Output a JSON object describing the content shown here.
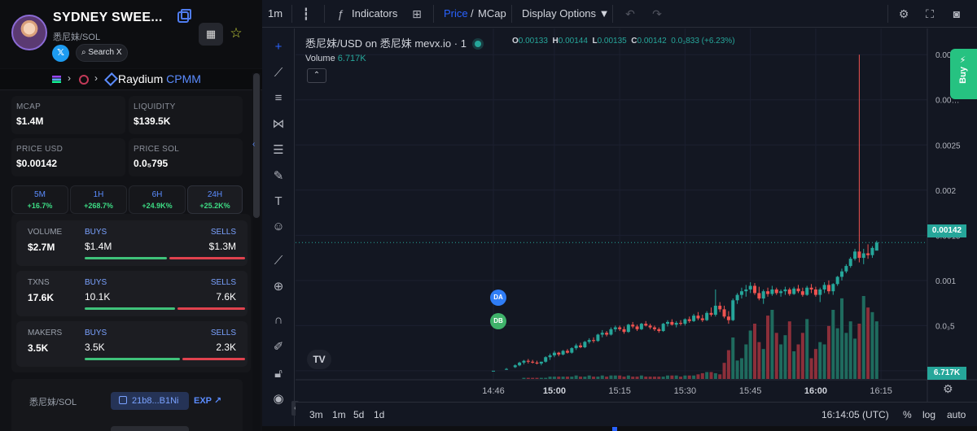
{
  "token": {
    "name": "SYDNEY SWEE...",
    "pair": "悉尼妹/SOL",
    "x_label": "𝕏",
    "search_x": "Search X"
  },
  "dex": {
    "name": "Raydium",
    "variant": "CPMM"
  },
  "stats": [
    {
      "label": "MCAP",
      "value": "$1.4M"
    },
    {
      "label": "LIQUIDITY",
      "value": "$139.5K"
    },
    {
      "label": "PRICE USD",
      "value": "$0.00142"
    },
    {
      "label": "PRICE SOL",
      "value": "0.0₅795"
    }
  ],
  "timeframes": [
    {
      "label": "5M",
      "pct": "+16.7%"
    },
    {
      "label": "1H",
      "pct": "+268.7%"
    },
    {
      "label": "6H",
      "pct": "+24.9K%"
    },
    {
      "label": "24H",
      "pct": "+25.2K%"
    }
  ],
  "trades": [
    {
      "label": "VOLUME",
      "value": "$2.7M",
      "buys_label": "BUYS",
      "buys": "$1.4M",
      "sells_label": "SELLS",
      "sells": "$1.3M",
      "buy_ratio": 0.52
    },
    {
      "label": "TXNS",
      "value": "17.6K",
      "buys_label": "BUYS",
      "buys": "10.1K",
      "sells_label": "SELLS",
      "sells": "7.6K",
      "buy_ratio": 0.57
    },
    {
      "label": "MAKERS",
      "value": "3.5K",
      "buys_label": "BUYS",
      "buys": "3.5K",
      "sells_label": "SELLS",
      "sells": "2.3K",
      "buy_ratio": 0.6
    }
  ],
  "address": {
    "label": "悉尼妹/SOL",
    "short": "21b8...B1Ni",
    "exp": "EXP"
  },
  "topbar": {
    "interval": "1m",
    "indicators": "Indicators",
    "price": "Price",
    "slash": "/",
    "mcap": "MCap",
    "display_options": "Display Options"
  },
  "legend": {
    "symbol": "悉尼妹/USD on 悉尼妹 mevx.io · 1",
    "o_label": "O",
    "o": "0.00133",
    "h_label": "H",
    "h": "0.00144",
    "l_label": "L",
    "l": "0.00135",
    "c_label": "C",
    "c": "0.00142",
    "change": "0.0₃833 (+6.23%)",
    "volume_label": "Volume",
    "volume": "6.717K"
  },
  "markers": [
    {
      "text": "DA",
      "color": "#2f7df6"
    },
    {
      "text": "DB",
      "color": "#3fb26a"
    }
  ],
  "buy_button": "Buy",
  "bottombar": {
    "ranges": [
      "3m",
      "1m",
      "5d",
      "1d"
    ],
    "time": "16:14:05 (UTC)",
    "pct": "%",
    "log": "log",
    "auto": "auto"
  },
  "chart_data": {
    "type": "candlestick",
    "title": "",
    "price_badge": "0.00142",
    "volume_badge": "6.717K",
    "y_ticks": [
      "0.00…",
      "0.00…",
      "0.0025",
      "0.002",
      "0.0015",
      "0.001",
      "0.0₃5",
      "0"
    ],
    "y_tick_values": [
      0.0035,
      0.003,
      0.0025,
      0.002,
      0.0015,
      0.001,
      0.0005,
      0
    ],
    "x_ticks": [
      "14:46",
      "15:00",
      "15:15",
      "15:30",
      "15:45",
      "16:00",
      "16:15"
    ],
    "x_tick_minutes": [
      0,
      14,
      29,
      44,
      59,
      74,
      89
    ],
    "ylim": [
      -0.0001,
      0.0037
    ],
    "candles": [
      {
        "m": 0,
        "o": 0,
        "h": 0,
        "l": 0,
        "c": 0
      },
      {
        "m": 3,
        "o": 2e-05,
        "h": 3e-05,
        "l": 1e-05,
        "c": 2e-05
      },
      {
        "m": 5,
        "o": 4e-05,
        "h": 7e-05,
        "l": 3e-05,
        "c": 6e-05
      },
      {
        "m": 6,
        "o": 6e-05,
        "h": 0.0001,
        "l": 5e-05,
        "c": 9e-05
      },
      {
        "m": 7,
        "o": 9e-05,
        "h": 0.00012,
        "l": 7e-05,
        "c": 0.00011
      },
      {
        "m": 8,
        "o": 0.00011,
        "h": 0.00013,
        "l": 8e-05,
        "c": 0.0001
      },
      {
        "m": 9,
        "o": 0.0001,
        "h": 0.00012,
        "l": 8e-05,
        "c": 9e-05
      },
      {
        "m": 10,
        "o": 9e-05,
        "h": 0.00011,
        "l": 7e-05,
        "c": 8e-05
      },
      {
        "m": 11,
        "o": 8e-05,
        "h": 0.0001,
        "l": 6e-05,
        "c": 0.0001
      },
      {
        "m": 12,
        "o": 0.0001,
        "h": 0.00016,
        "l": 9e-05,
        "c": 0.00015
      },
      {
        "m": 13,
        "o": 0.00015,
        "h": 0.00019,
        "l": 0.00012,
        "c": 0.00017
      },
      {
        "m": 14,
        "o": 0.00017,
        "h": 0.00022,
        "l": 0.00015,
        "c": 0.0002
      },
      {
        "m": 15,
        "o": 0.0002,
        "h": 0.00021,
        "l": 0.00016,
        "c": 0.00018
      },
      {
        "m": 16,
        "o": 0.00018,
        "h": 0.00023,
        "l": 0.00017,
        "c": 0.00022
      },
      {
        "m": 17,
        "o": 0.00022,
        "h": 0.00024,
        "l": 0.00019,
        "c": 0.0002
      },
      {
        "m": 18,
        "o": 0.0002,
        "h": 0.00026,
        "l": 0.00019,
        "c": 0.00025
      },
      {
        "m": 19,
        "o": 0.00025,
        "h": 0.0003,
        "l": 0.00023,
        "c": 0.00028
      },
      {
        "m": 20,
        "o": 0.00028,
        "h": 0.00031,
        "l": 0.00025,
        "c": 0.00026
      },
      {
        "m": 21,
        "o": 0.00026,
        "h": 0.00033,
        "l": 0.00025,
        "c": 0.00032
      },
      {
        "m": 22,
        "o": 0.00032,
        "h": 0.00036,
        "l": 0.0003,
        "c": 0.00034
      },
      {
        "m": 23,
        "o": 0.00034,
        "h": 0.00037,
        "l": 0.00031,
        "c": 0.00033
      },
      {
        "m": 24,
        "o": 0.00033,
        "h": 0.00041,
        "l": 0.00032,
        "c": 0.0004
      },
      {
        "m": 25,
        "o": 0.0004,
        "h": 0.00045,
        "l": 0.00037,
        "c": 0.00042
      },
      {
        "m": 26,
        "o": 0.00042,
        "h": 0.00044,
        "l": 0.00038,
        "c": 0.0004
      },
      {
        "m": 27,
        "o": 0.0004,
        "h": 0.00048,
        "l": 0.00039,
        "c": 0.00046
      },
      {
        "m": 28,
        "o": 0.00046,
        "h": 0.0005,
        "l": 0.00043,
        "c": 0.00048
      },
      {
        "m": 29,
        "o": 0.00048,
        "h": 0.0005,
        "l": 0.00044,
        "c": 0.00046
      },
      {
        "m": 30,
        "o": 0.00046,
        "h": 0.00049,
        "l": 0.00041,
        "c": 0.00043
      },
      {
        "m": 31,
        "o": 0.00043,
        "h": 0.00052,
        "l": 0.00042,
        "c": 0.00051
      },
      {
        "m": 32,
        "o": 0.00051,
        "h": 0.00054,
        "l": 0.00047,
        "c": 0.00049
      },
      {
        "m": 33,
        "o": 0.00049,
        "h": 0.00051,
        "l": 0.00044,
        "c": 0.00046
      },
      {
        "m": 34,
        "o": 0.00046,
        "h": 0.00053,
        "l": 0.00045,
        "c": 0.00052
      },
      {
        "m": 35,
        "o": 0.00052,
        "h": 0.00055,
        "l": 0.00049,
        "c": 0.0005
      },
      {
        "m": 36,
        "o": 0.0005,
        "h": 0.00052,
        "l": 0.00046,
        "c": 0.00048
      },
      {
        "m": 37,
        "o": 0.00048,
        "h": 0.0005,
        "l": 0.00044,
        "c": 0.00046
      },
      {
        "m": 38,
        "o": 0.00046,
        "h": 0.00048,
        "l": 0.00042,
        "c": 0.00044
      },
      {
        "m": 39,
        "o": 0.00044,
        "h": 0.00053,
        "l": 0.00043,
        "c": 0.00052
      },
      {
        "m": 40,
        "o": 0.00052,
        "h": 0.00056,
        "l": 0.00049,
        "c": 0.00054
      },
      {
        "m": 41,
        "o": 0.00054,
        "h": 0.00057,
        "l": 0.0005,
        "c": 0.00051
      },
      {
        "m": 42,
        "o": 0.00051,
        "h": 0.00055,
        "l": 0.00048,
        "c": 0.00053
      },
      {
        "m": 43,
        "o": 0.00053,
        "h": 0.00056,
        "l": 0.0005,
        "c": 0.00052
      },
      {
        "m": 44,
        "o": 0.00052,
        "h": 0.00058,
        "l": 0.0005,
        "c": 0.00057
      },
      {
        "m": 45,
        "o": 0.00057,
        "h": 0.0006,
        "l": 0.00053,
        "c": 0.00055
      },
      {
        "m": 46,
        "o": 0.00055,
        "h": 0.00063,
        "l": 0.00054,
        "c": 0.00061
      },
      {
        "m": 47,
        "o": 0.00061,
        "h": 0.00065,
        "l": 0.00056,
        "c": 0.00058
      },
      {
        "m": 48,
        "o": 0.00058,
        "h": 0.00062,
        "l": 0.00054,
        "c": 0.00056
      },
      {
        "m": 49,
        "o": 0.00056,
        "h": 0.00066,
        "l": 0.00055,
        "c": 0.00064
      },
      {
        "m": 50,
        "o": 0.00064,
        "h": 0.0007,
        "l": 0.0006,
        "c": 0.00062
      },
      {
        "m": 51,
        "o": 0.00062,
        "h": 0.0009,
        "l": 0.0006,
        "c": 0.00072
      },
      {
        "m": 52,
        "o": 0.00072,
        "h": 0.00076,
        "l": 0.00065,
        "c": 0.00068
      },
      {
        "m": 53,
        "o": 0.00068,
        "h": 0.00072,
        "l": 0.00058,
        "c": 0.0006
      },
      {
        "m": 54,
        "o": 0.0006,
        "h": 0.00066,
        "l": 0.00052,
        "c": 0.00056
      },
      {
        "m": 55,
        "o": 0.00056,
        "h": 0.0008,
        "l": 0.00055,
        "c": 0.00078
      },
      {
        "m": 56,
        "o": 0.00078,
        "h": 0.00086,
        "l": 0.00074,
        "c": 0.00084
      },
      {
        "m": 57,
        "o": 0.00084,
        "h": 0.00092,
        "l": 0.0008,
        "c": 0.00088
      },
      {
        "m": 58,
        "o": 0.00088,
        "h": 0.00095,
        "l": 0.00082,
        "c": 0.0009
      },
      {
        "m": 59,
        "o": 0.0009,
        "h": 0.00098,
        "l": 0.00086,
        "c": 0.00094
      },
      {
        "m": 60,
        "o": 0.00094,
        "h": 0.00097,
        "l": 0.00084,
        "c": 0.00086
      },
      {
        "m": 61,
        "o": 0.00086,
        "h": 0.00093,
        "l": 0.00078,
        "c": 0.0008
      },
      {
        "m": 62,
        "o": 0.0008,
        "h": 0.0009,
        "l": 0.00074,
        "c": 0.00088
      },
      {
        "m": 63,
        "o": 0.00088,
        "h": 0.00092,
        "l": 0.00082,
        "c": 0.00085
      },
      {
        "m": 64,
        "o": 0.00085,
        "h": 0.00094,
        "l": 0.00083,
        "c": 0.0009
      },
      {
        "m": 65,
        "o": 0.0009,
        "h": 0.00092,
        "l": 0.00084,
        "c": 0.00086
      },
      {
        "m": 66,
        "o": 0.00086,
        "h": 0.0009,
        "l": 0.00082,
        "c": 0.00088
      },
      {
        "m": 67,
        "o": 0.00088,
        "h": 0.00093,
        "l": 0.00084,
        "c": 0.0009
      },
      {
        "m": 68,
        "o": 0.0009,
        "h": 0.00092,
        "l": 0.00083,
        "c": 0.00085
      },
      {
        "m": 69,
        "o": 0.00085,
        "h": 0.00093,
        "l": 0.00084,
        "c": 0.00091
      },
      {
        "m": 70,
        "o": 0.00091,
        "h": 0.00095,
        "l": 0.00086,
        "c": 0.00088
      },
      {
        "m": 71,
        "o": 0.00088,
        "h": 0.00092,
        "l": 0.00082,
        "c": 0.00084
      },
      {
        "m": 72,
        "o": 0.00084,
        "h": 0.00094,
        "l": 0.00083,
        "c": 0.00092
      },
      {
        "m": 73,
        "o": 0.00092,
        "h": 0.00096,
        "l": 0.00086,
        "c": 0.0009
      },
      {
        "m": 74,
        "o": 0.0009,
        "h": 0.00093,
        "l": 0.00082,
        "c": 0.00084
      },
      {
        "m": 75,
        "o": 0.00084,
        "h": 0.00092,
        "l": 0.00076,
        "c": 0.0009
      },
      {
        "m": 76,
        "o": 0.0009,
        "h": 0.00098,
        "l": 0.00086,
        "c": 0.00095
      },
      {
        "m": 77,
        "o": 0.00095,
        "h": 0.001,
        "l": 0.00085,
        "c": 0.00088
      },
      {
        "m": 78,
        "o": 0.00088,
        "h": 0.00097,
        "l": 0.00084,
        "c": 0.00096
      },
      {
        "m": 79,
        "o": 0.00096,
        "h": 0.00105,
        "l": 0.00094,
        "c": 0.00104
      },
      {
        "m": 80,
        "o": 0.00104,
        "h": 0.00113,
        "l": 0.001,
        "c": 0.0011
      },
      {
        "m": 81,
        "o": 0.0011,
        "h": 0.00118,
        "l": 0.00108,
        "c": 0.00116
      },
      {
        "m": 82,
        "o": 0.00116,
        "h": 0.00126,
        "l": 0.00114,
        "c": 0.00124
      },
      {
        "m": 83,
        "o": 0.00124,
        "h": 0.00135,
        "l": 0.00122,
        "c": 0.00132
      },
      {
        "m": 84,
        "o": 0.00132,
        "h": 0.0035,
        "l": 0.0012,
        "c": 0.00125
      },
      {
        "m": 85,
        "o": 0.00125,
        "h": 0.00135,
        "l": 0.00118,
        "c": 0.0013
      },
      {
        "m": 86,
        "o": 0.0013,
        "h": 0.0014,
        "l": 0.00124,
        "c": 0.00128
      },
      {
        "m": 87,
        "o": 0.00128,
        "h": 0.00138,
        "l": 0.00125,
        "c": 0.00136
      },
      {
        "m": 88,
        "o": 0.00133,
        "h": 0.00144,
        "l": 0.00135,
        "c": 0.00142
      }
    ],
    "volumes": [
      0,
      0,
      0,
      0,
      1,
      1,
      1,
      1,
      1,
      1,
      2,
      2,
      2,
      2,
      2,
      2,
      3,
      2,
      2,
      3,
      2,
      2,
      3,
      2,
      3,
      3,
      3,
      2,
      3,
      2,
      2,
      3,
      2,
      2,
      2,
      2,
      2,
      3,
      3,
      3,
      2,
      3,
      3,
      3,
      4,
      5,
      6,
      6,
      5,
      4,
      14,
      25,
      36,
      16,
      18,
      30,
      42,
      48,
      32,
      26,
      55,
      60,
      40,
      30,
      38,
      50,
      24,
      30,
      40,
      52,
      18,
      26,
      32,
      30,
      46,
      60,
      44,
      70,
      40,
      50,
      35,
      48,
      72,
      62,
      58,
      50,
      38,
      26,
      8
    ]
  }
}
